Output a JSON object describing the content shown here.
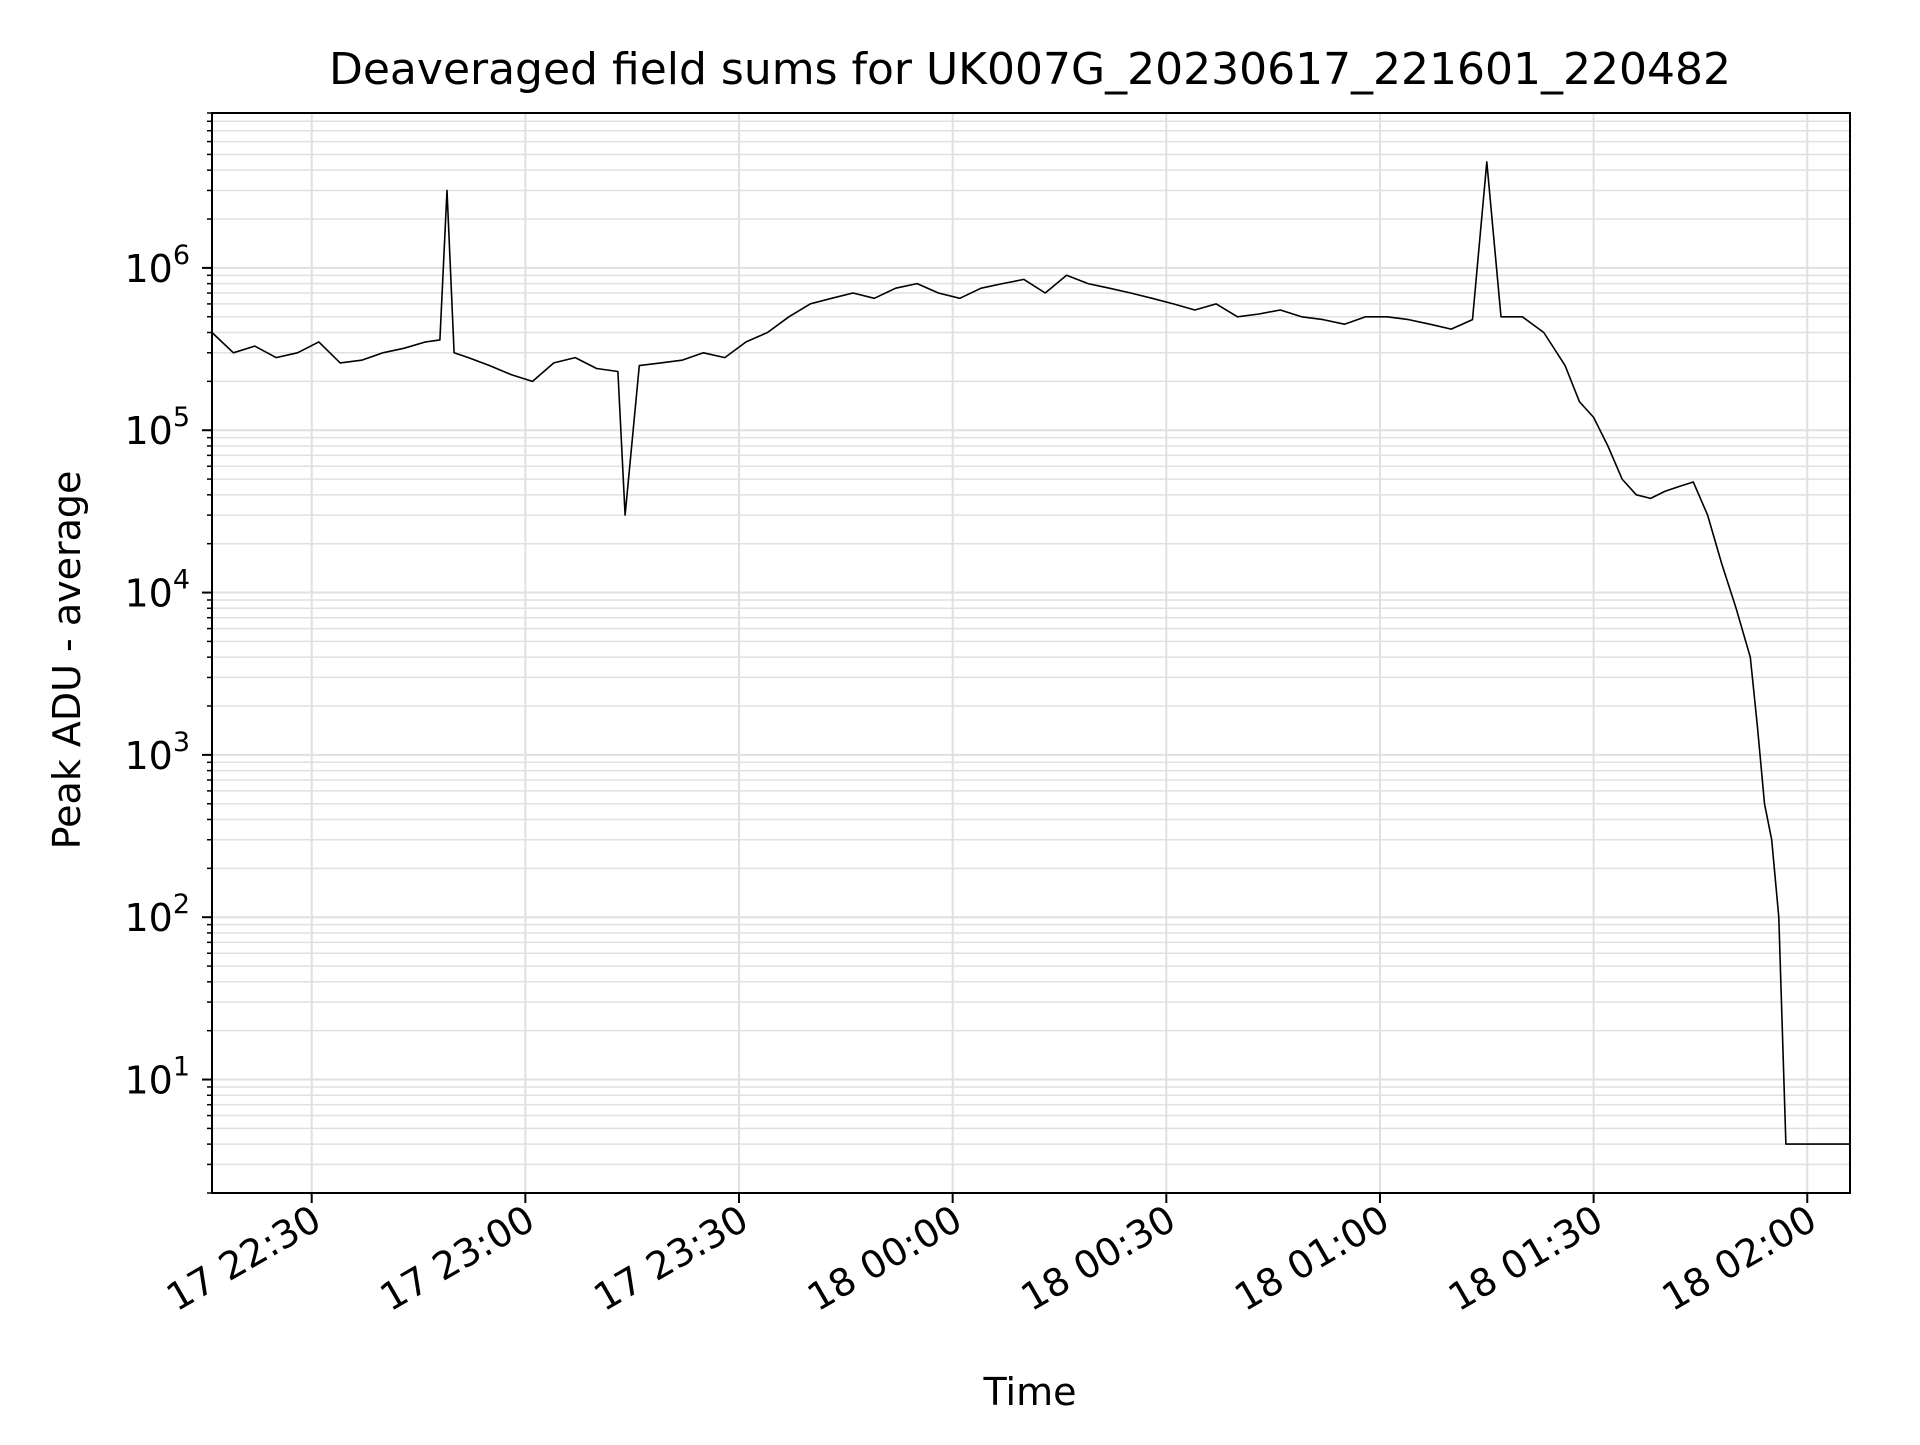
{
  "chart_data": {
    "type": "line",
    "title": "Deaveraged field sums for UK007G_20230617_221601_220482",
    "xlabel": "Time",
    "ylabel": "Peak ADU - average",
    "y_scale": "log",
    "ylim": [
      2,
      9000000
    ],
    "xlim": [
      "17 22:16",
      "18 02:06"
    ],
    "grid": true,
    "line_color": "#000000",
    "grid_color": "#e0e0e0",
    "x_ticks": [
      "17 22:30",
      "17 23:00",
      "17 23:30",
      "18 00:00",
      "18 00:30",
      "18 01:00",
      "18 01:30",
      "18 02:00"
    ],
    "y_ticks": [
      {
        "base": "10",
        "exp": "1",
        "value": 10
      },
      {
        "base": "10",
        "exp": "2",
        "value": 100
      },
      {
        "base": "10",
        "exp": "3",
        "value": 1000
      },
      {
        "base": "10",
        "exp": "4",
        "value": 10000
      },
      {
        "base": "10",
        "exp": "5",
        "value": 100000
      },
      {
        "base": "10",
        "exp": "6",
        "value": 1000000
      }
    ],
    "series": [
      {
        "x": [
          "17 22:16",
          "17 22:19",
          "17 22:22",
          "17 22:25",
          "17 22:28",
          "17 22:31",
          "17 22:34",
          "17 22:37",
          "17 22:40",
          "17 22:43",
          "17 22:46",
          "17 22:48",
          "17 22:49",
          "17 22:50",
          "17 22:52",
          "17 22:55",
          "17 22:58",
          "17 23:01",
          "17 23:04",
          "17 23:07",
          "17 23:10",
          "17 23:13",
          "17 23:14",
          "17 23:16",
          "17 23:19",
          "17 23:22",
          "17 23:25",
          "17 23:28",
          "17 23:31",
          "17 23:34",
          "17 23:37",
          "17 23:40",
          "17 23:43",
          "17 23:46",
          "17 23:49",
          "17 23:52",
          "17 23:55",
          "17 23:58",
          "18 00:01",
          "18 00:04",
          "18 00:07",
          "18 00:10",
          "18 00:13",
          "18 00:16",
          "18 00:19",
          "18 00:22",
          "18 00:25",
          "18 00:28",
          "18 00:31",
          "18 00:34",
          "18 00:37",
          "18 00:40",
          "18 00:43",
          "18 00:46",
          "18 00:49",
          "18 00:52",
          "18 00:55",
          "18 00:58",
          "18 01:01",
          "18 01:04",
          "18 01:07",
          "18 01:10",
          "18 01:13",
          "18 01:15",
          "18 01:17",
          "18 01:20",
          "18 01:23",
          "18 01:26",
          "18 01:28",
          "18 01:30",
          "18 01:32",
          "18 01:34",
          "18 01:36",
          "18 01:38",
          "18 01:40",
          "18 01:42",
          "18 01:44",
          "18 01:46",
          "18 01:48",
          "18 01:50",
          "18 01:52",
          "18 01:53",
          "18 01:54",
          "18 01:55",
          "18 01:56",
          "18 01:57",
          "18 01:59",
          "18 02:01",
          "18 02:03",
          "18 02:06"
        ],
        "y": [
          400000,
          300000,
          330000,
          280000,
          300000,
          350000,
          260000,
          270000,
          300000,
          320000,
          350000,
          360000,
          3000000,
          300000,
          280000,
          250000,
          220000,
          200000,
          260000,
          280000,
          240000,
          230000,
          30000,
          250000,
          260000,
          270000,
          300000,
          280000,
          350000,
          400000,
          500000,
          600000,
          650000,
          700000,
          650000,
          750000,
          800000,
          700000,
          650000,
          750000,
          800000,
          850000,
          700000,
          900000,
          800000,
          750000,
          700000,
          650000,
          600000,
          550000,
          600000,
          500000,
          520000,
          550000,
          500000,
          480000,
          450000,
          500000,
          500000,
          480000,
          450000,
          420000,
          480000,
          4500000,
          500000,
          500000,
          400000,
          250000,
          150000,
          120000,
          80000,
          50000,
          40000,
          38000,
          42000,
          45000,
          48000,
          30000,
          15000,
          8000,
          4000,
          1500,
          500,
          300,
          100,
          4,
          4,
          4,
          4,
          4
        ]
      }
    ]
  }
}
